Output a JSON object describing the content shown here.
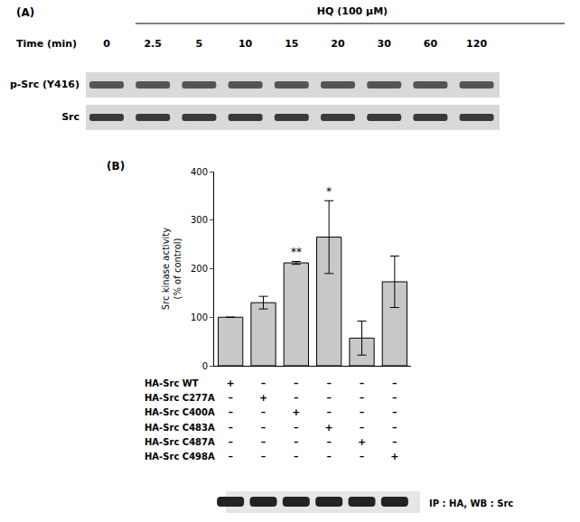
{
  "chart_data": {
    "type": "bar",
    "panel_label": "(B)",
    "y_label": [
      "Src kinase activity",
      "(% of control)"
    ],
    "categories": [
      "HA-Src WT",
      "HA-Src C277A",
      "HA-Src C400A",
      "HA-Src C483A",
      "HA-Src C487A",
      "HA-Src C498A"
    ],
    "values": [
      100,
      130,
      212,
      265,
      57,
      173
    ],
    "errors": [
      0,
      13,
      3,
      75,
      35,
      53
    ],
    "annotations": [
      {
        "category": "HA-Src C400A",
        "text": "**"
      },
      {
        "category": "HA-Src C483A",
        "text": "*"
      }
    ],
    "color": "#c8c8c8",
    "ylim": [
      0,
      400
    ],
    "yticks": [
      0,
      100,
      200,
      300,
      400
    ],
    "grid": false,
    "tick_labels": "y",
    "matrix": [
      [
        "+",
        "–",
        "–",
        "–",
        "–",
        "–"
      ],
      [
        "–",
        "+",
        "–",
        "–",
        "–",
        "–"
      ],
      [
        "–",
        "–",
        "+",
        "–",
        "–",
        "–"
      ],
      [
        "–",
        "–",
        "–",
        "+",
        "–",
        "–"
      ],
      [
        "–",
        "–",
        "–",
        "–",
        "+",
        "–"
      ],
      [
        "–",
        "–",
        "–",
        "–",
        "–",
        "+"
      ]
    ],
    "blot_label": "IP : HA, WB : Src"
  },
  "panel_a": {
    "panel_label": "(A)",
    "treatment": "HQ (100 μM)",
    "time_label": "Time (min)",
    "times": [
      "0",
      "2.5",
      "5",
      "10",
      "15",
      "20",
      "30",
      "60",
      "120"
    ],
    "rows": [
      "p-Src (Y416)",
      "Src"
    ]
  }
}
